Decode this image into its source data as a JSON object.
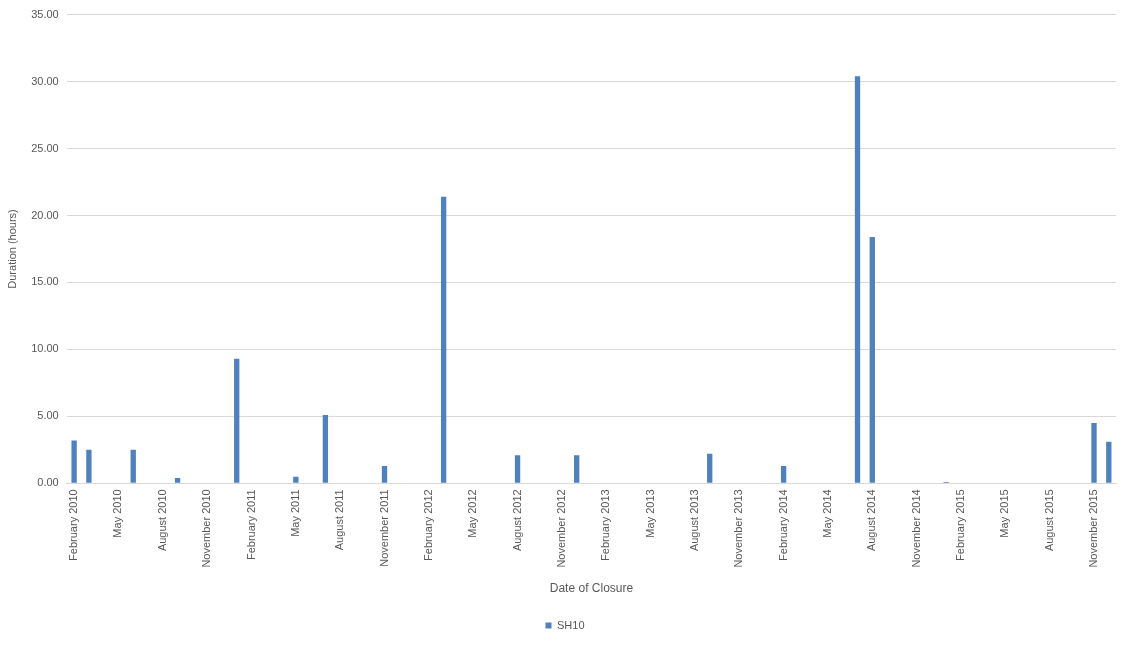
{
  "chart_data": {
    "type": "bar",
    "xlabel": "Date of Closure",
    "ylabel": "Duration (hours)",
    "categories": [
      "February 2010",
      null,
      null,
      "May 2010",
      null,
      null,
      "August 2010",
      null,
      null,
      "November 2010",
      null,
      null,
      "February 2011",
      null,
      null,
      "May 2011",
      null,
      null,
      "August 2011",
      null,
      null,
      "November 2011",
      null,
      null,
      "February 2012",
      null,
      null,
      "May 2012",
      null,
      null,
      "August 2012",
      null,
      null,
      "November 2012",
      null,
      null,
      "February 2013",
      null,
      null,
      "May 2013",
      null,
      null,
      "August 2013",
      null,
      null,
      "November 2013",
      null,
      null,
      "February 2014",
      null,
      null,
      "May 2014",
      null,
      null,
      "August 2014",
      null,
      null,
      "November 2014",
      null,
      null,
      "February 2015",
      null,
      null,
      "May 2015",
      null,
      null,
      "August 2015",
      null,
      null,
      "November 2015",
      null
    ],
    "series": [
      {
        "name": "SH10",
        "color": "#4f81bd",
        "values": [
          3.2,
          2.5,
          null,
          null,
          2.5,
          null,
          null,
          0.4,
          null,
          null,
          null,
          9.3,
          null,
          null,
          null,
          0.5,
          null,
          5.1,
          null,
          null,
          null,
          1.3,
          null,
          null,
          null,
          21.4,
          null,
          null,
          null,
          null,
          2.1,
          null,
          null,
          null,
          2.1,
          null,
          null,
          null,
          null,
          null,
          null,
          null,
          null,
          2.2,
          null,
          null,
          null,
          null,
          1.3,
          null,
          null,
          null,
          null,
          30.4,
          18.4,
          null,
          null,
          null,
          null,
          0.1,
          null,
          null,
          null,
          null,
          null,
          null,
          null,
          null,
          null,
          4.5,
          3.1
        ]
      }
    ],
    "ylim": [
      0,
      35
    ],
    "yticks": [
      {
        "value": 0,
        "label": "0.00"
      },
      {
        "value": 5,
        "label": "5.00"
      },
      {
        "value": 10,
        "label": "10.00"
      },
      {
        "value": 15,
        "label": "15.00"
      },
      {
        "value": 20,
        "label": "20.00"
      },
      {
        "value": 25,
        "label": "25.00"
      },
      {
        "value": 30,
        "label": "30.00"
      },
      {
        "value": 35,
        "label": "35.00"
      }
    ],
    "grid": "y",
    "legend": "bottom"
  }
}
